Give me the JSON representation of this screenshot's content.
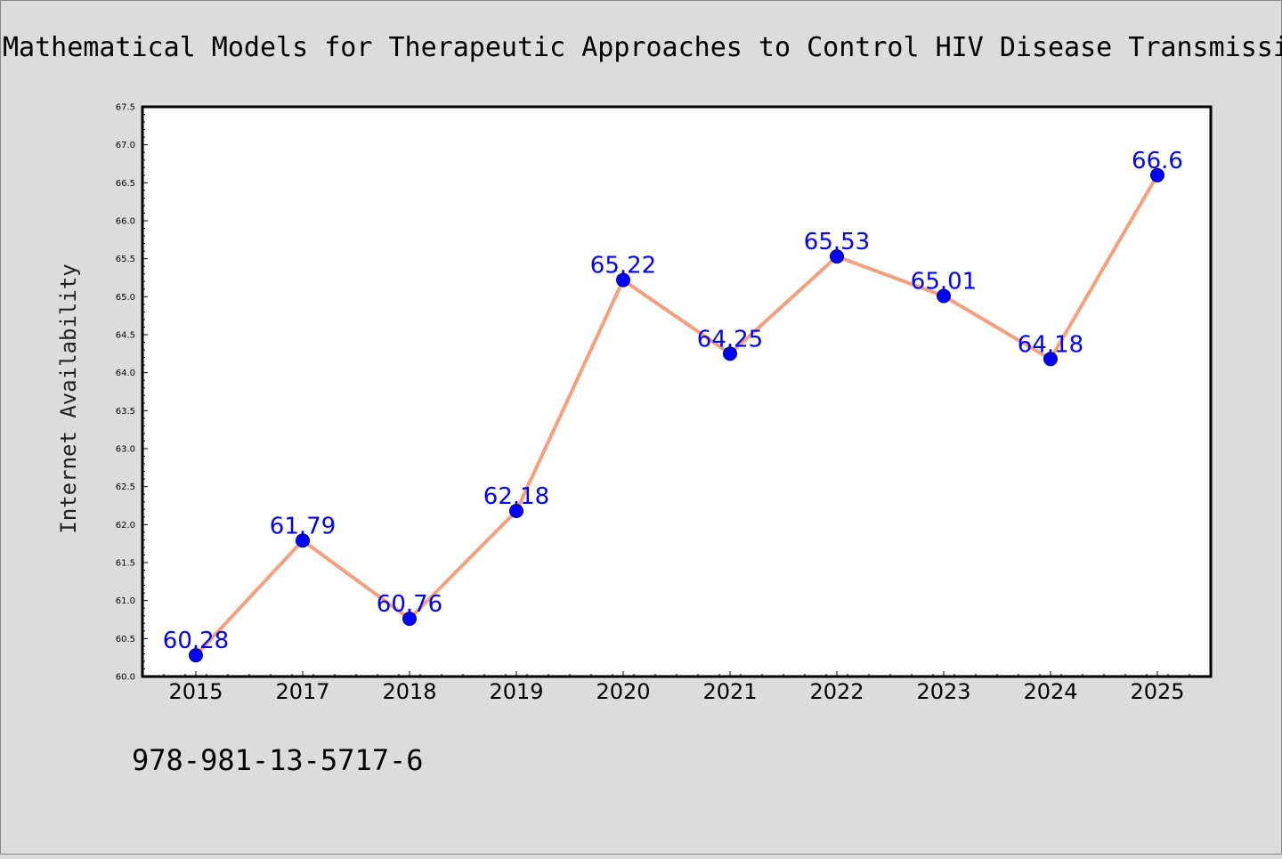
{
  "chart_data": {
    "type": "line",
    "title": "Mathematical Models for Therapeutic Approaches to Control HIV Disease Transmissi",
    "xlabel": "",
    "ylabel": "Internet Availability",
    "categories": [
      "2015",
      "2017",
      "2018",
      "2019",
      "2020",
      "2021",
      "2022",
      "2023",
      "2024",
      "2025"
    ],
    "series": [
      {
        "values": [
          60.28,
          61.79,
          60.76,
          62.18,
          65.22,
          64.25,
          65.53,
          65.01,
          64.18,
          66.6
        ],
        "labels": [
          "60.28",
          "61.79",
          "60.76",
          "62.18",
          "65.22",
          "64.25",
          "65.53",
          "65.01",
          "64.18",
          "66.6"
        ]
      }
    ],
    "ylim": [
      60.0,
      67.5
    ],
    "yticks": [
      "60.0",
      "60.5",
      "61.0",
      "61.5",
      "62.0",
      "62.5",
      "63.0",
      "63.5",
      "64.0",
      "64.5",
      "65.0",
      "65.5",
      "66.0",
      "66.5",
      "67.0",
      "67.5"
    ],
    "grid": false,
    "colors": {
      "line": "#f4a07e",
      "marker": "#0000ff",
      "marker_edge": "#000066",
      "label": "#0000ff",
      "background": "#dcdcdc",
      "plot_background": "#ffffff"
    }
  },
  "footer": {
    "isbn": "978-981-13-5717-6"
  }
}
